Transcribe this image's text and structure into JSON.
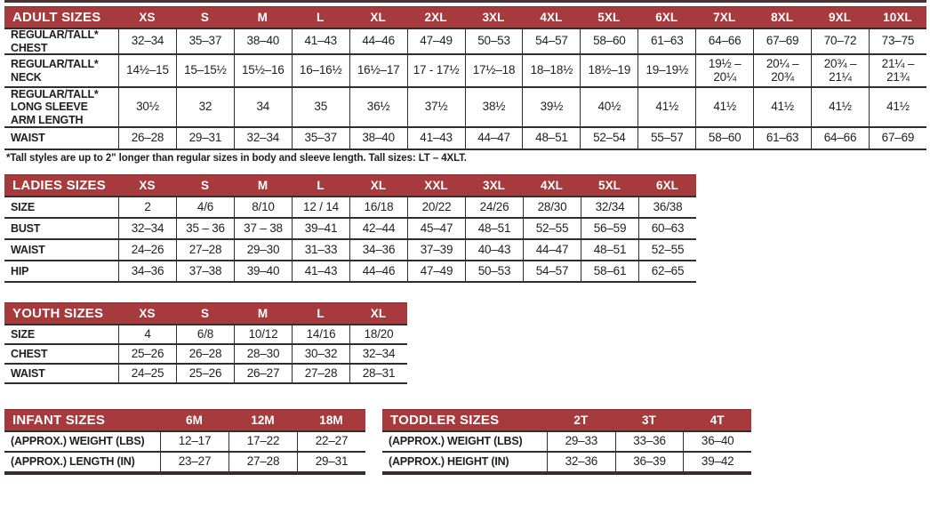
{
  "colors": {
    "header_bg": "#A63A3C",
    "header_text": "#FFFFFF",
    "grid_line": "#2E2E2E",
    "top_rule": "#463336"
  },
  "chart_data": [
    {
      "type": "table",
      "title": "ADULT SIZES",
      "columns": [
        "XS",
        "S",
        "M",
        "L",
        "XL",
        "2XL",
        "3XL",
        "4XL",
        "5XL",
        "6XL",
        "7XL",
        "8XL",
        "9XL",
        "10XL"
      ],
      "rows": [
        {
          "label": "REGULAR/TALL*\nCHEST",
          "values": [
            "32–34",
            "35–37",
            "38–40",
            "41–43",
            "44–46",
            "47–49",
            "50–53",
            "54–57",
            "58–60",
            "61–63",
            "64–66",
            "67–69",
            "70–72",
            "73–75"
          ]
        },
        {
          "label": "REGULAR/TALL*\nNECK",
          "values": [
            "14½–15",
            "15–15½",
            "15½–16",
            "16–16½",
            "16½–17",
            "17 - 17½",
            "17½–18",
            "18–18½",
            "18½–19",
            "19–19½",
            "19½ –\n20¼",
            "20¼ –\n20¾",
            "20¾ –\n21¼",
            "21¼ –\n21¾"
          ]
        },
        {
          "label": "REGULAR/TALL*\nLONG SLEEVE\nARM LENGTH",
          "values": [
            "30½",
            "32",
            "34",
            "35",
            "36½",
            "37½",
            "38½",
            "39½",
            "40½",
            "41½",
            "41½",
            "41½",
            "41½",
            "41½"
          ]
        },
        {
          "label": "WAIST",
          "values": [
            "26–28",
            "29–31",
            "32–34",
            "35–37",
            "38–40",
            "41–43",
            "44–47",
            "48–51",
            "52–54",
            "55–57",
            "58–60",
            "61–63",
            "64–66",
            "67–69"
          ]
        }
      ],
      "footnote": "*Tall styles are up to 2\" longer than regular sizes in body and sleeve length. Tall sizes: LT – 4XLT."
    },
    {
      "type": "table",
      "title": "LADIES SIZES",
      "columns": [
        "XS",
        "S",
        "M",
        "L",
        "XL",
        "XXL",
        "3XL",
        "4XL",
        "5XL",
        "6XL"
      ],
      "rows": [
        {
          "label": "SIZE",
          "values": [
            "2",
            "4/6",
            "8/10",
            "12 / 14",
            "16/18",
            "20/22",
            "24/26",
            "28/30",
            "32/34",
            "36/38"
          ]
        },
        {
          "label": "BUST",
          "values": [
            "32–34",
            "35 – 36",
            "37 – 38",
            "39–41",
            "42–44",
            "45–47",
            "48–51",
            "52–55",
            "56–59",
            "60–63"
          ]
        },
        {
          "label": "WAIST",
          "values": [
            "24–26",
            "27–28",
            "29–30",
            "31–33",
            "34–36",
            "37–39",
            "40–43",
            "44–47",
            "48–51",
            "52–55"
          ]
        },
        {
          "label": "HIP",
          "values": [
            "34–36",
            "37–38",
            "39–40",
            "41–43",
            "44–46",
            "47–49",
            "50–53",
            "54–57",
            "58–61",
            "62–65"
          ]
        }
      ]
    },
    {
      "type": "table",
      "title": "YOUTH SIZES",
      "columns": [
        "XS",
        "S",
        "M",
        "L",
        "XL"
      ],
      "rows": [
        {
          "label": "SIZE",
          "values": [
            "4",
            "6/8",
            "10/12",
            "14/16",
            "18/20"
          ]
        },
        {
          "label": "CHEST",
          "values": [
            "25–26",
            "26–28",
            "28–30",
            "30–32",
            "32–34"
          ]
        },
        {
          "label": "WAIST",
          "values": [
            "24–25",
            "25–26",
            "26–27",
            "27–28",
            "28–31"
          ]
        }
      ]
    },
    {
      "type": "table",
      "title": "INFANT SIZES",
      "columns": [
        "6M",
        "12M",
        "18M"
      ],
      "rows": [
        {
          "label": "(APPROX.) WEIGHT (LBS)",
          "values": [
            "12–17",
            "17–22",
            "22–27"
          ]
        },
        {
          "label": "(APPROX.) LENGTH (IN)",
          "values": [
            "23–27",
            "27–28",
            "29–31"
          ]
        }
      ]
    },
    {
      "type": "table",
      "title": "TODDLER SIZES",
      "columns": [
        "2T",
        "3T",
        "4T"
      ],
      "rows": [
        {
          "label": "(APPROX.) WEIGHT (LBS)",
          "values": [
            "29–33",
            "33–36",
            "36–40"
          ]
        },
        {
          "label": "(APPROX.) HEIGHT (IN)",
          "values": [
            "32–36",
            "36–39",
            "39–42"
          ]
        }
      ]
    }
  ]
}
